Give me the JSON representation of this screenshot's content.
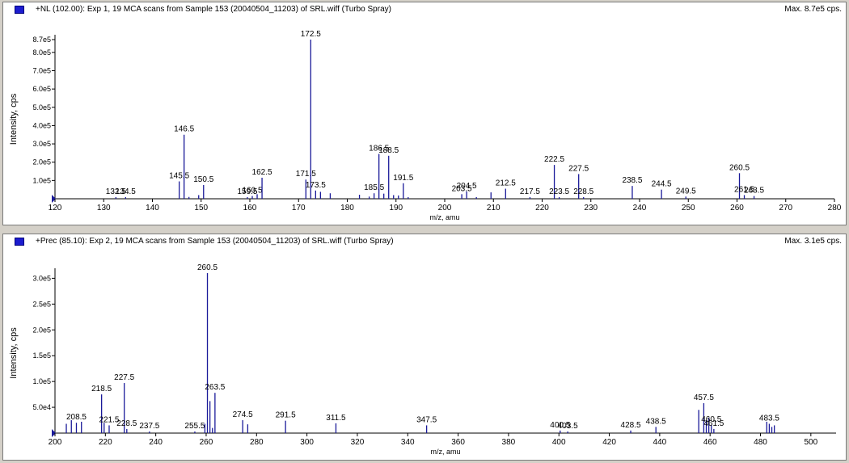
{
  "panels": [
    {
      "title": "+NL (102.00): Exp 1, 19 MCA scans from Sample 153 (20040504_11203) of SRL.wiff (Turbo Spray)",
      "max_label": "Max. 8.7e5 cps."
    },
    {
      "title": "+Prec (85.10): Exp 2, 19 MCA scans from Sample 153 (20040504_11203) of SRL.wiff (Turbo Spray)",
      "max_label": "Max. 3.1e5 cps."
    }
  ],
  "colors": {
    "peak": "#1a1a99",
    "axis": "#000000",
    "label": "#000000"
  },
  "chart_data": [
    {
      "type": "bar",
      "xlabel": "m/z, amu",
      "ylabel": "Intensity, cps",
      "xlim": [
        120,
        280
      ],
      "ylim": [
        0,
        870000
      ],
      "x_ticks": [
        "120",
        "130",
        "140",
        "150",
        "160",
        "170",
        "180",
        "190",
        "200",
        "210",
        "220",
        "230",
        "240",
        "250",
        "260",
        "270",
        "280"
      ],
      "y_ticks": [
        {
          "value": 100000,
          "label": "1.0e5"
        },
        {
          "value": 200000,
          "label": "2.0e5"
        },
        {
          "value": 300000,
          "label": "3.0e5"
        },
        {
          "value": 400000,
          "label": "4.0e5"
        },
        {
          "value": 500000,
          "label": "5.0e5"
        },
        {
          "value": 600000,
          "label": "6.0e5"
        },
        {
          "value": 700000,
          "label": "7.0e5"
        },
        {
          "value": 800000,
          "label": "8.0e5"
        },
        {
          "value": 870000,
          "label": "8.7e5"
        }
      ],
      "peaks": [
        {
          "x": 132.5,
          "y": 3000,
          "label": "132.5"
        },
        {
          "x": 134.5,
          "y": 3000,
          "label": "134.5"
        },
        {
          "x": 145.5,
          "y": 95000,
          "label": "145.5"
        },
        {
          "x": 146.5,
          "y": 350000,
          "label": "146.5"
        },
        {
          "x": 147.5,
          "y": 10000
        },
        {
          "x": 149.5,
          "y": 20000
        },
        {
          "x": 150.5,
          "y": 75000,
          "label": "150.5"
        },
        {
          "x": 159.5,
          "y": 5000,
          "label": "159.5"
        },
        {
          "x": 160.5,
          "y": 15000,
          "label": "160.5"
        },
        {
          "x": 161.5,
          "y": 25000
        },
        {
          "x": 162.5,
          "y": 115000,
          "label": "162.5"
        },
        {
          "x": 171.5,
          "y": 105000,
          "label": "171.5"
        },
        {
          "x": 172.5,
          "y": 870000,
          "label": "172.5"
        },
        {
          "x": 173.5,
          "y": 45000,
          "label": "173.5"
        },
        {
          "x": 174.5,
          "y": 38000
        },
        {
          "x": 176.5,
          "y": 30000
        },
        {
          "x": 182.5,
          "y": 22000
        },
        {
          "x": 184.5,
          "y": 12000
        },
        {
          "x": 185.5,
          "y": 30000,
          "label": "185.5"
        },
        {
          "x": 186.5,
          "y": 245000,
          "label": "186.5"
        },
        {
          "x": 187.5,
          "y": 28000
        },
        {
          "x": 188.5,
          "y": 235000,
          "label": "188.5"
        },
        {
          "x": 189.5,
          "y": 20000
        },
        {
          "x": 190.5,
          "y": 18000
        },
        {
          "x": 191.5,
          "y": 85000,
          "label": "191.5"
        },
        {
          "x": 192.5,
          "y": 8000
        },
        {
          "x": 203.5,
          "y": 25000,
          "label": "203.5"
        },
        {
          "x": 204.5,
          "y": 40000,
          "label": "204.5"
        },
        {
          "x": 206.5,
          "y": 8000
        },
        {
          "x": 209.5,
          "y": 35000
        },
        {
          "x": 212.5,
          "y": 55000,
          "label": "212.5"
        },
        {
          "x": 217.5,
          "y": 3000,
          "label": "217.5"
        },
        {
          "x": 222.5,
          "y": 185000,
          "label": "222.5"
        },
        {
          "x": 223.5,
          "y": 8000,
          "label": "223.5"
        },
        {
          "x": 227.5,
          "y": 135000,
          "label": "227.5"
        },
        {
          "x": 228.5,
          "y": 8000,
          "label": "228.5"
        },
        {
          "x": 238.5,
          "y": 70000,
          "label": "238.5"
        },
        {
          "x": 244.5,
          "y": 50000,
          "label": "244.5"
        },
        {
          "x": 249.5,
          "y": 12000,
          "label": "249.5"
        },
        {
          "x": 260.5,
          "y": 140000,
          "label": "260.5"
        },
        {
          "x": 261.5,
          "y": 20000,
          "label": "261.5"
        },
        {
          "x": 263.5,
          "y": 15000,
          "label": "263.5"
        }
      ]
    },
    {
      "type": "bar",
      "xlabel": "m/z, amu",
      "ylabel": "Intensity, cps",
      "xlim": [
        200,
        510
      ],
      "ylim": [
        0,
        310000
      ],
      "x_ticks": [
        "200",
        "220",
        "240",
        "260",
        "280",
        "300",
        "320",
        "340",
        "360",
        "380",
        "400",
        "420",
        "440",
        "460",
        "480",
        "500"
      ],
      "y_ticks": [
        {
          "value": 50000,
          "label": "5.0e4"
        },
        {
          "value": 100000,
          "label": "1.0e5"
        },
        {
          "value": 150000,
          "label": "1.5e5"
        },
        {
          "value": 200000,
          "label": "2.0e5"
        },
        {
          "value": 250000,
          "label": "2.5e5"
        },
        {
          "value": 300000,
          "label": "3.0e5"
        }
      ],
      "peaks": [
        {
          "x": 204.5,
          "y": 18000
        },
        {
          "x": 206.5,
          "y": 25000
        },
        {
          "x": 208.5,
          "y": 20000,
          "label": "208.5"
        },
        {
          "x": 210.5,
          "y": 22000
        },
        {
          "x": 218.5,
          "y": 75000,
          "label": "218.5"
        },
        {
          "x": 219.5,
          "y": 20000
        },
        {
          "x": 221.5,
          "y": 15000,
          "label": "221.5"
        },
        {
          "x": 227.5,
          "y": 97000,
          "label": "227.5"
        },
        {
          "x": 228.5,
          "y": 8000,
          "label": "228.5"
        },
        {
          "x": 237.5,
          "y": 3000,
          "label": "237.5"
        },
        {
          "x": 255.5,
          "y": 3000,
          "label": "255.5"
        },
        {
          "x": 259.5,
          "y": 18000
        },
        {
          "x": 260.5,
          "y": 310000,
          "label": "260.5"
        },
        {
          "x": 261.5,
          "y": 62000
        },
        {
          "x": 262.5,
          "y": 10000
        },
        {
          "x": 263.5,
          "y": 78000,
          "label": "263.5"
        },
        {
          "x": 274.5,
          "y": 25000,
          "label": "274.5"
        },
        {
          "x": 276.5,
          "y": 17000
        },
        {
          "x": 291.5,
          "y": 24000,
          "label": "291.5"
        },
        {
          "x": 311.5,
          "y": 19000,
          "label": "311.5"
        },
        {
          "x": 347.5,
          "y": 15000,
          "label": "347.5"
        },
        {
          "x": 400.5,
          "y": 5000,
          "label": "400.5"
        },
        {
          "x": 403.5,
          "y": 3000,
          "label": "403.5"
        },
        {
          "x": 428.5,
          "y": 5000,
          "label": "428.5"
        },
        {
          "x": 438.5,
          "y": 12000,
          "label": "438.5"
        },
        {
          "x": 455.5,
          "y": 45000
        },
        {
          "x": 457.5,
          "y": 58000,
          "label": "457.5"
        },
        {
          "x": 458.5,
          "y": 25000
        },
        {
          "x": 459.5,
          "y": 30000
        },
        {
          "x": 460.5,
          "y": 16000,
          "label": "460.5"
        },
        {
          "x": 461.5,
          "y": 8000,
          "label": "461.5"
        },
        {
          "x": 482.5,
          "y": 22000
        },
        {
          "x": 483.5,
          "y": 18000,
          "label": "483.5"
        },
        {
          "x": 484.5,
          "y": 12000
        },
        {
          "x": 485.5,
          "y": 15000
        }
      ]
    }
  ]
}
